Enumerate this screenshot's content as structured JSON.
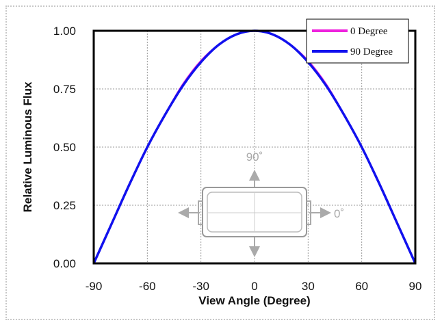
{
  "chart_data": {
    "type": "line",
    "xlabel": "View Angle (Degree)",
    "ylabel": "Relative Luminous Flux",
    "xlim": [
      -90,
      90
    ],
    "ylim": [
      0,
      1
    ],
    "x_ticks": [
      "-90",
      "-60",
      "-30",
      "0",
      "30",
      "60",
      "90"
    ],
    "y_ticks": [
      "0.00",
      "0.25",
      "0.50",
      "0.75",
      "1.00"
    ],
    "grid": true,
    "legend_position": "top-right",
    "x": [
      -90,
      -80,
      -70,
      -60,
      -50,
      -40,
      -30,
      -20,
      -10,
      0,
      10,
      20,
      30,
      40,
      50,
      60,
      70,
      80,
      90
    ],
    "series": [
      {
        "name": "0 Degree",
        "color": "#ee22dd",
        "values": [
          0.0,
          0.17,
          0.34,
          0.5,
          0.64,
          0.77,
          0.87,
          0.94,
          0.985,
          1.0,
          0.985,
          0.94,
          0.87,
          0.77,
          0.64,
          0.5,
          0.34,
          0.17,
          0.0
        ]
      },
      {
        "name": "90 Degree",
        "color": "#1111ee",
        "values": [
          0.0,
          0.17,
          0.34,
          0.5,
          0.64,
          0.765,
          0.865,
          0.94,
          0.985,
          1.0,
          0.985,
          0.94,
          0.865,
          0.765,
          0.64,
          0.5,
          0.34,
          0.17,
          0.0
        ]
      }
    ]
  },
  "inset_diagram": {
    "label_90": "90˚",
    "label_0": "0˚",
    "color": "#aaaaaa"
  }
}
